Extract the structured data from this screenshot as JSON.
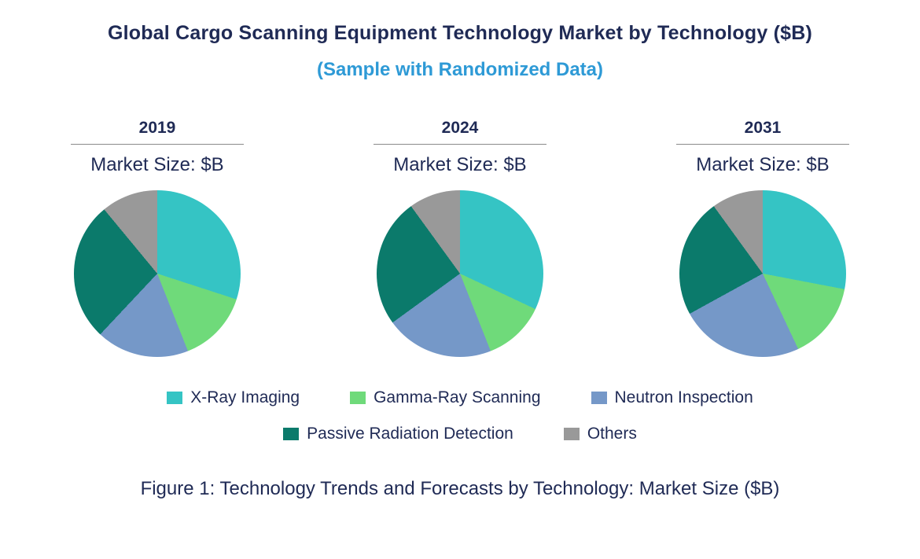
{
  "title": "Global Cargo Scanning Equipment Technology Market by Technology ($B)",
  "subtitle": "(Sample with Randomized Data)",
  "caption": "Figure 1: Technology Trends and Forecasts by Technology: Market Size ($B)",
  "colors": {
    "title_text": "#1F2A55",
    "subtitle_text": "#2E9AD6",
    "x_ray": "#35C4C4",
    "gamma_ray": "#6FDA7A",
    "neutron": "#7598C8",
    "passive": "#0B7A6B",
    "others": "#999999"
  },
  "legend": {
    "items": [
      {
        "label": "X-Ray Imaging",
        "color": "#35C4C4"
      },
      {
        "label": "Gamma-Ray Scanning",
        "color": "#6FDA7A"
      },
      {
        "label": "Neutron Inspection",
        "color": "#7598C8"
      },
      {
        "label": "Passive Radiation Detection",
        "color": "#0B7A6B"
      },
      {
        "label": "Others",
        "color": "#999999"
      }
    ]
  },
  "chart_data": [
    {
      "type": "pie",
      "title": "2019",
      "subtitle": "Market Size: $B",
      "categories": [
        "X-Ray Imaging",
        "Gamma-Ray Scanning",
        "Neutron Inspection",
        "Passive Radiation Detection",
        "Others"
      ],
      "values": [
        30,
        14,
        18,
        27,
        11
      ],
      "colors": [
        "#35C4C4",
        "#6FDA7A",
        "#7598C8",
        "#0B7A6B",
        "#999999"
      ],
      "units": "percent of market, start at 12 o'clock clockwise"
    },
    {
      "type": "pie",
      "title": "2024",
      "subtitle": "Market Size: $B",
      "categories": [
        "X-Ray Imaging",
        "Gamma-Ray Scanning",
        "Neutron Inspection",
        "Passive Radiation Detection",
        "Others"
      ],
      "values": [
        32,
        12,
        21,
        25,
        10
      ],
      "colors": [
        "#35C4C4",
        "#6FDA7A",
        "#7598C8",
        "#0B7A6B",
        "#999999"
      ],
      "units": "percent of market, start at 12 o'clock clockwise"
    },
    {
      "type": "pie",
      "title": "2031",
      "subtitle": "Market Size: $B",
      "categories": [
        "X-Ray Imaging",
        "Gamma-Ray Scanning",
        "Neutron Inspection",
        "Passive Radiation Detection",
        "Others"
      ],
      "values": [
        28,
        15,
        24,
        23,
        10
      ],
      "colors": [
        "#35C4C4",
        "#6FDA7A",
        "#7598C8",
        "#0B7A6B",
        "#999999"
      ],
      "units": "percent of market, start at 12 o'clock clockwise"
    }
  ]
}
